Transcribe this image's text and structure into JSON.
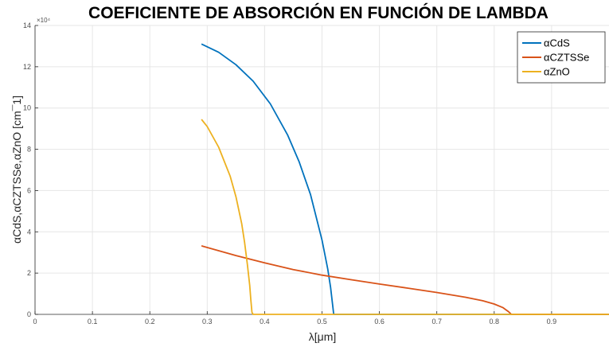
{
  "chart_data": {
    "type": "line",
    "title": "COEFICIENTE DE ABSORCIÓN EN FUNCIÓN DE LAMBDA",
    "xlabel": "λ[μm]",
    "ylabel": "αCdS,αCZTSSe,αZnO  [cm¯1]",
    "y_exponent_label": "×10⁴",
    "xlim": [
      0,
      1
    ],
    "ylim": [
      0,
      14
    ],
    "x_ticks": [
      0,
      0.1,
      0.2,
      0.3,
      0.4,
      0.5,
      0.6,
      0.7,
      0.8,
      0.9
    ],
    "x_tick_labels": [
      "0",
      "0.1",
      "0.2",
      "0.3",
      "0.4",
      "0.5",
      "0.6",
      "0.7",
      "0.8",
      "0.9"
    ],
    "y_ticks": [
      0,
      2,
      4,
      6,
      8,
      10,
      12,
      14
    ],
    "y_tick_labels": [
      "0",
      "2",
      "4",
      "6",
      "8",
      "10",
      "12",
      "14"
    ],
    "grid": true,
    "legend_position": "top-right",
    "series": [
      {
        "name": "αCdS",
        "color": "#0072BD",
        "x": [
          0.29,
          0.32,
          0.35,
          0.38,
          0.41,
          0.44,
          0.46,
          0.48,
          0.5,
          0.51,
          0.515,
          0.52,
          0.5205,
          0.521,
          0.6,
          0.7,
          0.8,
          0.9,
          1.0
        ],
        "y": [
          13.1,
          12.7,
          12.1,
          11.3,
          10.2,
          8.7,
          7.4,
          5.8,
          3.6,
          2.2,
          1.3,
          0.1,
          0,
          0,
          0,
          0,
          0,
          0,
          0
        ]
      },
      {
        "name": "αCZTSSe",
        "color": "#D95319",
        "x": [
          0.29,
          0.35,
          0.4,
          0.45,
          0.5,
          0.55,
          0.6,
          0.65,
          0.7,
          0.75,
          0.78,
          0.8,
          0.815,
          0.825,
          0.83,
          0.84,
          0.9,
          1.0
        ],
        "y": [
          3.32,
          2.85,
          2.5,
          2.17,
          1.9,
          1.68,
          1.47,
          1.27,
          1.06,
          0.83,
          0.66,
          0.5,
          0.33,
          0.13,
          0,
          0,
          0,
          0
        ]
      },
      {
        "name": "αZnO",
        "color": "#EDB120",
        "x": [
          0.29,
          0.3,
          0.32,
          0.34,
          0.35,
          0.36,
          0.365,
          0.37,
          0.374,
          0.376,
          0.378,
          0.38,
          0.4,
          0.5,
          0.6,
          0.7,
          0.8,
          0.9,
          1.0
        ],
        "y": [
          9.45,
          9.1,
          8.1,
          6.7,
          5.7,
          4.4,
          3.5,
          2.4,
          1.4,
          0.7,
          0.1,
          0,
          0,
          0,
          0,
          0,
          0,
          0,
          0
        ]
      }
    ]
  }
}
